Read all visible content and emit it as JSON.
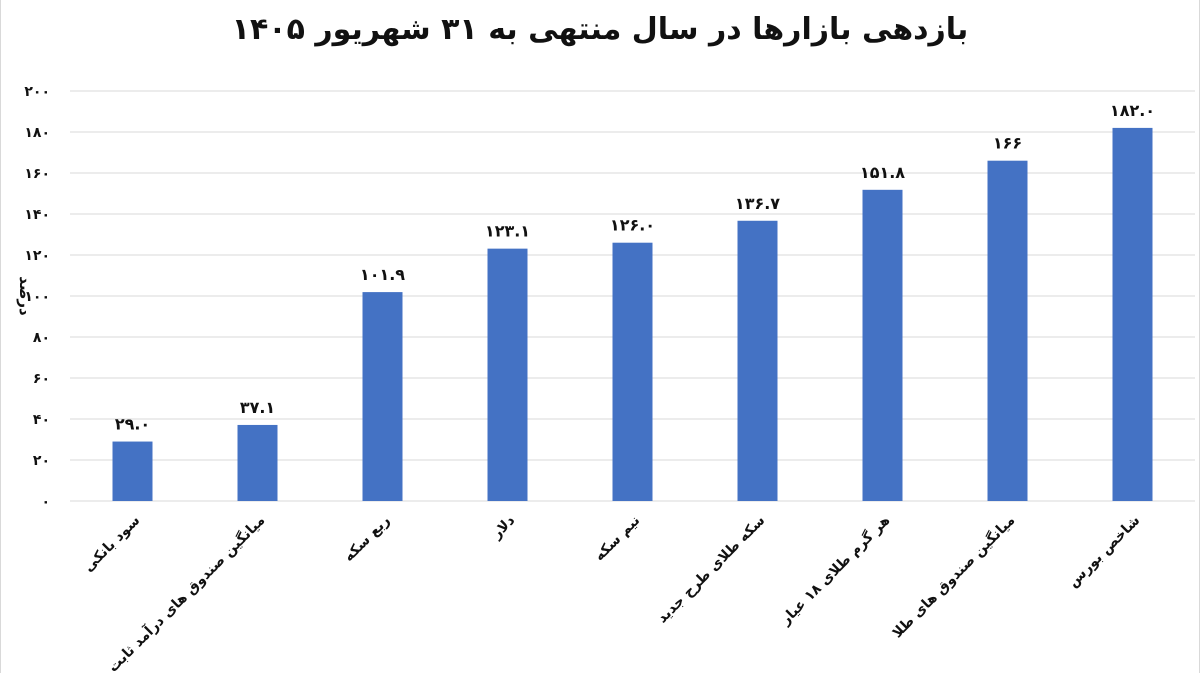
{
  "chart_data": {
    "type": "bar",
    "title": "بازدهی بازارها در سال منتهی به ۳۱ شهریور ۱۴۰۵",
    "ylabel": "درصد",
    "xlabel": "",
    "ylim": [
      0,
      200
    ],
    "y_ticks": [
      0,
      20,
      40,
      60,
      80,
      100,
      120,
      140,
      160,
      180,
      200
    ],
    "y_tick_labels": [
      "۰",
      "۲۰",
      "۴۰",
      "۶۰",
      "۸۰",
      "۱۰۰",
      "۱۲۰",
      "۱۴۰",
      "۱۶۰",
      "۱۸۰",
      "۲۰۰"
    ],
    "grid": true,
    "legend": "none",
    "bar_color": "#4472C4",
    "categories": [
      "سود بانکی",
      "میانگین صندوق های درآمد ثابت",
      "ربع سکه",
      "دلار",
      "نیم سکه",
      "سکه طلای طرح جدید",
      "هر گرم طلای ۱۸ عیار",
      "میانگین صندوق های طلا",
      "شاخص بورس"
    ],
    "values": [
      29.0,
      37.1,
      101.9,
      123.1,
      126.0,
      136.7,
      151.8,
      166,
      182.0
    ],
    "data_labels": [
      "۲۹.۰",
      "۳۷.۱",
      "۱۰۱.۹",
      "۱۲۳.۱",
      "۱۲۶.۰",
      "۱۳۶.۷",
      "۱۵۱.۸",
      "۱۶۶",
      "۱۸۲.۰"
    ]
  }
}
